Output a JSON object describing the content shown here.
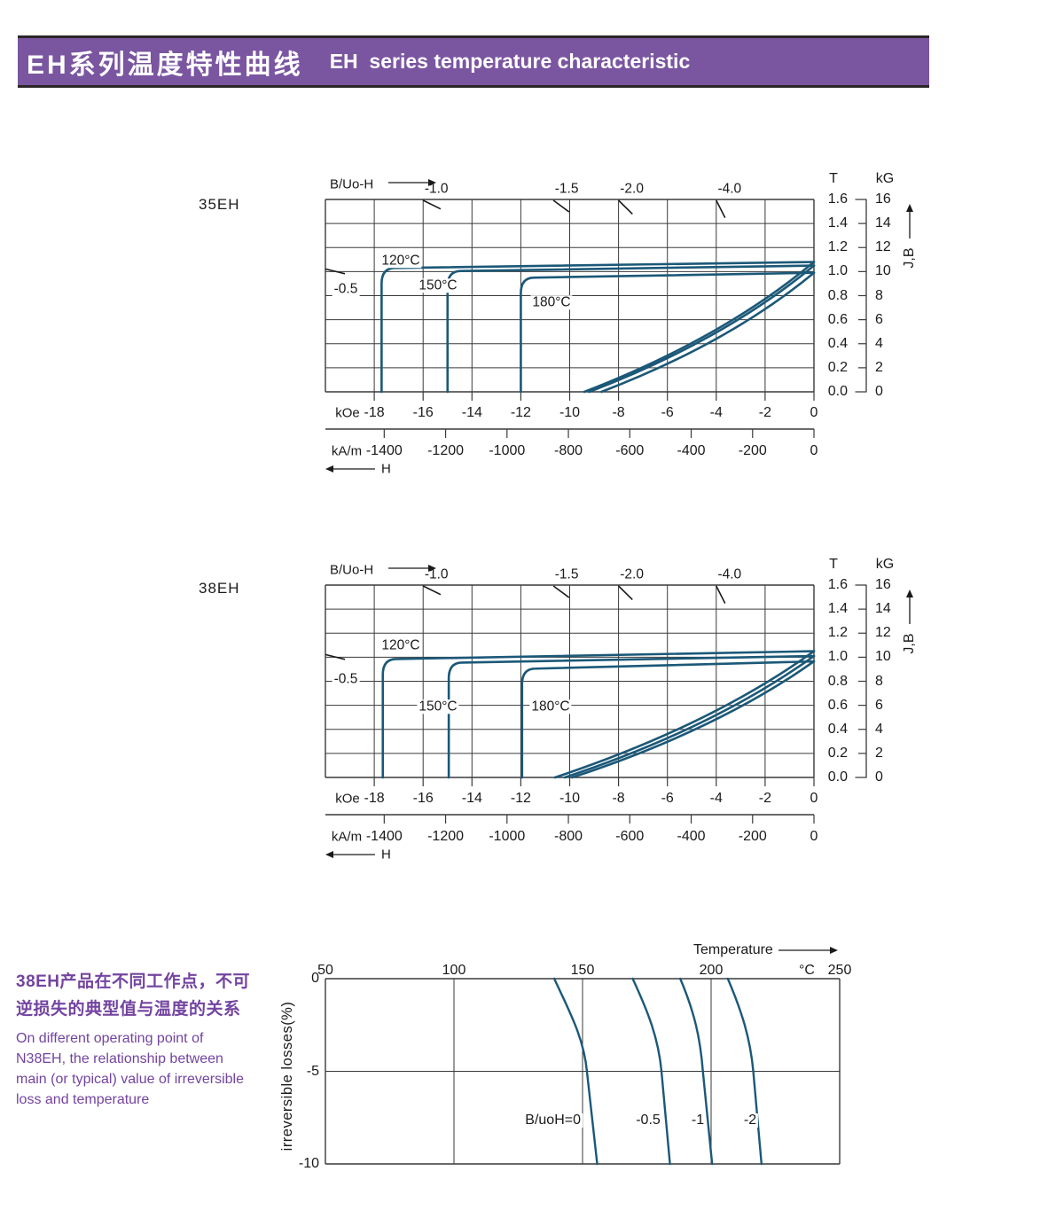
{
  "palette": {
    "accent_purple": "#7a55a0",
    "purple_text": "#7344a0",
    "curve_blue": "#1b5878",
    "grid_line": "#3a3a3a",
    "axis_ink": "#1a1a1a",
    "bar_border": "#2b2627"
  },
  "header": {
    "title_cn": "EH系列温度特性曲线",
    "title_en": "EH  series temperature characteristic",
    "bg": "#7a55a0",
    "text_color": "#ffffff"
  },
  "notes": {
    "chinese": "38EH产品在不同工作点，不可\n逆损失的典型值与温度的关系",
    "english": "On different operating point of\nN38EH,  the relationship between\nmain (or typical) value of irreversible\nloss and temperature"
  },
  "chart_data": [
    {
      "type": "line",
      "title": "35EH",
      "corner_label": "B/Uo-H",
      "xlim_kOe": [
        -20,
        0
      ],
      "ylim_T": [
        0,
        1.6
      ],
      "grid": true,
      "y_axis": {
        "t_header": "T",
        "kg_header": "kG",
        "t_ticks": [
          "1.6",
          "1.4",
          "1.2",
          "1.0",
          "0.8",
          "0.6",
          "0.4",
          "0.2",
          "0.0"
        ],
        "kg_ticks": [
          "16",
          "14",
          "12",
          "10",
          "8",
          "6",
          "4",
          "2",
          "0"
        ],
        "arrow_label": "J,B"
      },
      "x_axis": {
        "koe_unit": "kOe",
        "koe_ticks": [
          "-18",
          "-16",
          "-14",
          "-12",
          "-10",
          "-8",
          "-6",
          "-4",
          "-2",
          "0"
        ],
        "kam_unit": "kA/m",
        "kam_ticks": [
          "-1400",
          "-1200",
          "-1000",
          "-800",
          "-600",
          "-400",
          "-200",
          "0"
        ],
        "arrow_label": "H"
      },
      "load_lines": [
        {
          "label": "-0.5",
          "pc": 0.5
        },
        {
          "label": "-1.0",
          "pc": 1.0
        },
        {
          "label": "-1.5",
          "pc": 1.5
        },
        {
          "label": "-2.0",
          "pc": 2.0
        },
        {
          "label": "-4.0",
          "pc": 4.0
        }
      ],
      "series": [
        {
          "name": "120°C",
          "J": {
            "Br": 1.08,
            "flat_B": 1.03,
            "Hcj": -17.7
          },
          "B": {
            "Br": 1.08,
            "HcB": -9.4
          }
        },
        {
          "name": "150°C",
          "J": {
            "Br": 1.05,
            "flat_B": 1.005,
            "Hcj": -15.0
          },
          "B": {
            "Br": 1.05,
            "HcB": -9.2
          }
        },
        {
          "name": "180°C",
          "J": {
            "Br": 0.99,
            "flat_B": 0.95,
            "Hcj": -12.0
          },
          "B": {
            "Br": 0.99,
            "HcB": -8.7
          }
        }
      ]
    },
    {
      "type": "line",
      "title": "38EH",
      "corner_label": "B/Uo-H",
      "xlim_kOe": [
        -20,
        0
      ],
      "ylim_T": [
        0,
        1.6
      ],
      "grid": true,
      "y_axis": {
        "t_header": "T",
        "kg_header": "kG",
        "t_ticks": [
          "1.6",
          "1.4",
          "1.2",
          "1.0",
          "0.8",
          "0.6",
          "0.4",
          "0.2",
          "0.0"
        ],
        "kg_ticks": [
          "16",
          "14",
          "12",
          "10",
          "8",
          "6",
          "4",
          "2",
          "0"
        ],
        "arrow_label": "J,B"
      },
      "x_axis": {
        "koe_unit": "kOe",
        "koe_ticks": [
          "-18",
          "-16",
          "-14",
          "-12",
          "-10",
          "-8",
          "-6",
          "-4",
          "-2",
          "0"
        ],
        "kam_unit": "kA/m",
        "kam_ticks": [
          "-1400",
          "-1200",
          "-1000",
          "-800",
          "-600",
          "-400",
          "-200",
          "0"
        ],
        "arrow_label": "H"
      },
      "load_lines": [
        {
          "label": "-0.5",
          "pc": 0.5
        },
        {
          "label": "-1.0",
          "pc": 1.0
        },
        {
          "label": "-1.5",
          "pc": 1.5
        },
        {
          "label": "-2.0",
          "pc": 2.0
        },
        {
          "label": "-4.0",
          "pc": 4.0
        }
      ],
      "series": [
        {
          "name": "120°C",
          "J": {
            "Br": 1.05,
            "flat_B": 0.985,
            "Hcj": -17.65
          },
          "B": {
            "Br": 1.05,
            "HcB": -10.6
          }
        },
        {
          "name": "150°C",
          "J": {
            "Br": 1.01,
            "flat_B": 0.955,
            "Hcj": -14.95
          },
          "B": {
            "Br": 1.01,
            "HcB": -10.2
          }
        },
        {
          "name": "180°C",
          "J": {
            "Br": 0.965,
            "flat_B": 0.905,
            "Hcj": -11.95
          },
          "B": {
            "Br": 0.965,
            "HcB": -9.9
          }
        }
      ]
    },
    {
      "type": "line",
      "xlabel": "Temperature",
      "x_unit": "°C",
      "x_ticks": [
        "50",
        "100",
        "150",
        "200",
        "250"
      ],
      "ylabel": "irreversible  losses(%)",
      "y_ticks": [
        "0",
        "-5",
        "-10"
      ],
      "xlim": [
        50,
        250
      ],
      "ylim": [
        -10,
        0
      ],
      "series": [
        {
          "name": "B/uoH=0",
          "points": [
            [
              139,
              0
            ],
            [
              145,
              -1.8
            ],
            [
              150.5,
              -3.2
            ],
            [
              151.7,
              -5
            ],
            [
              155.7,
              -10
            ]
          ]
        },
        {
          "name": "-0.5",
          "points": [
            [
              169.5,
              0
            ],
            [
              175.5,
              -1.8
            ],
            [
              179.5,
              -3.2
            ],
            [
              180.7,
              -5
            ],
            [
              184,
              -10
            ]
          ]
        },
        {
          "name": "-1",
          "points": [
            [
              188,
              0
            ],
            [
              193.5,
              -1.8
            ],
            [
              195.8,
              -3.2
            ],
            [
              196.8,
              -5
            ],
            [
              200.4,
              -10
            ]
          ]
        },
        {
          "name": "-2",
          "points": [
            [
              206.5,
              0
            ],
            [
              212,
              -1.8
            ],
            [
              215.2,
              -3.2
            ],
            [
              216.4,
              -5
            ],
            [
              219.6,
              -10
            ]
          ]
        }
      ]
    }
  ]
}
